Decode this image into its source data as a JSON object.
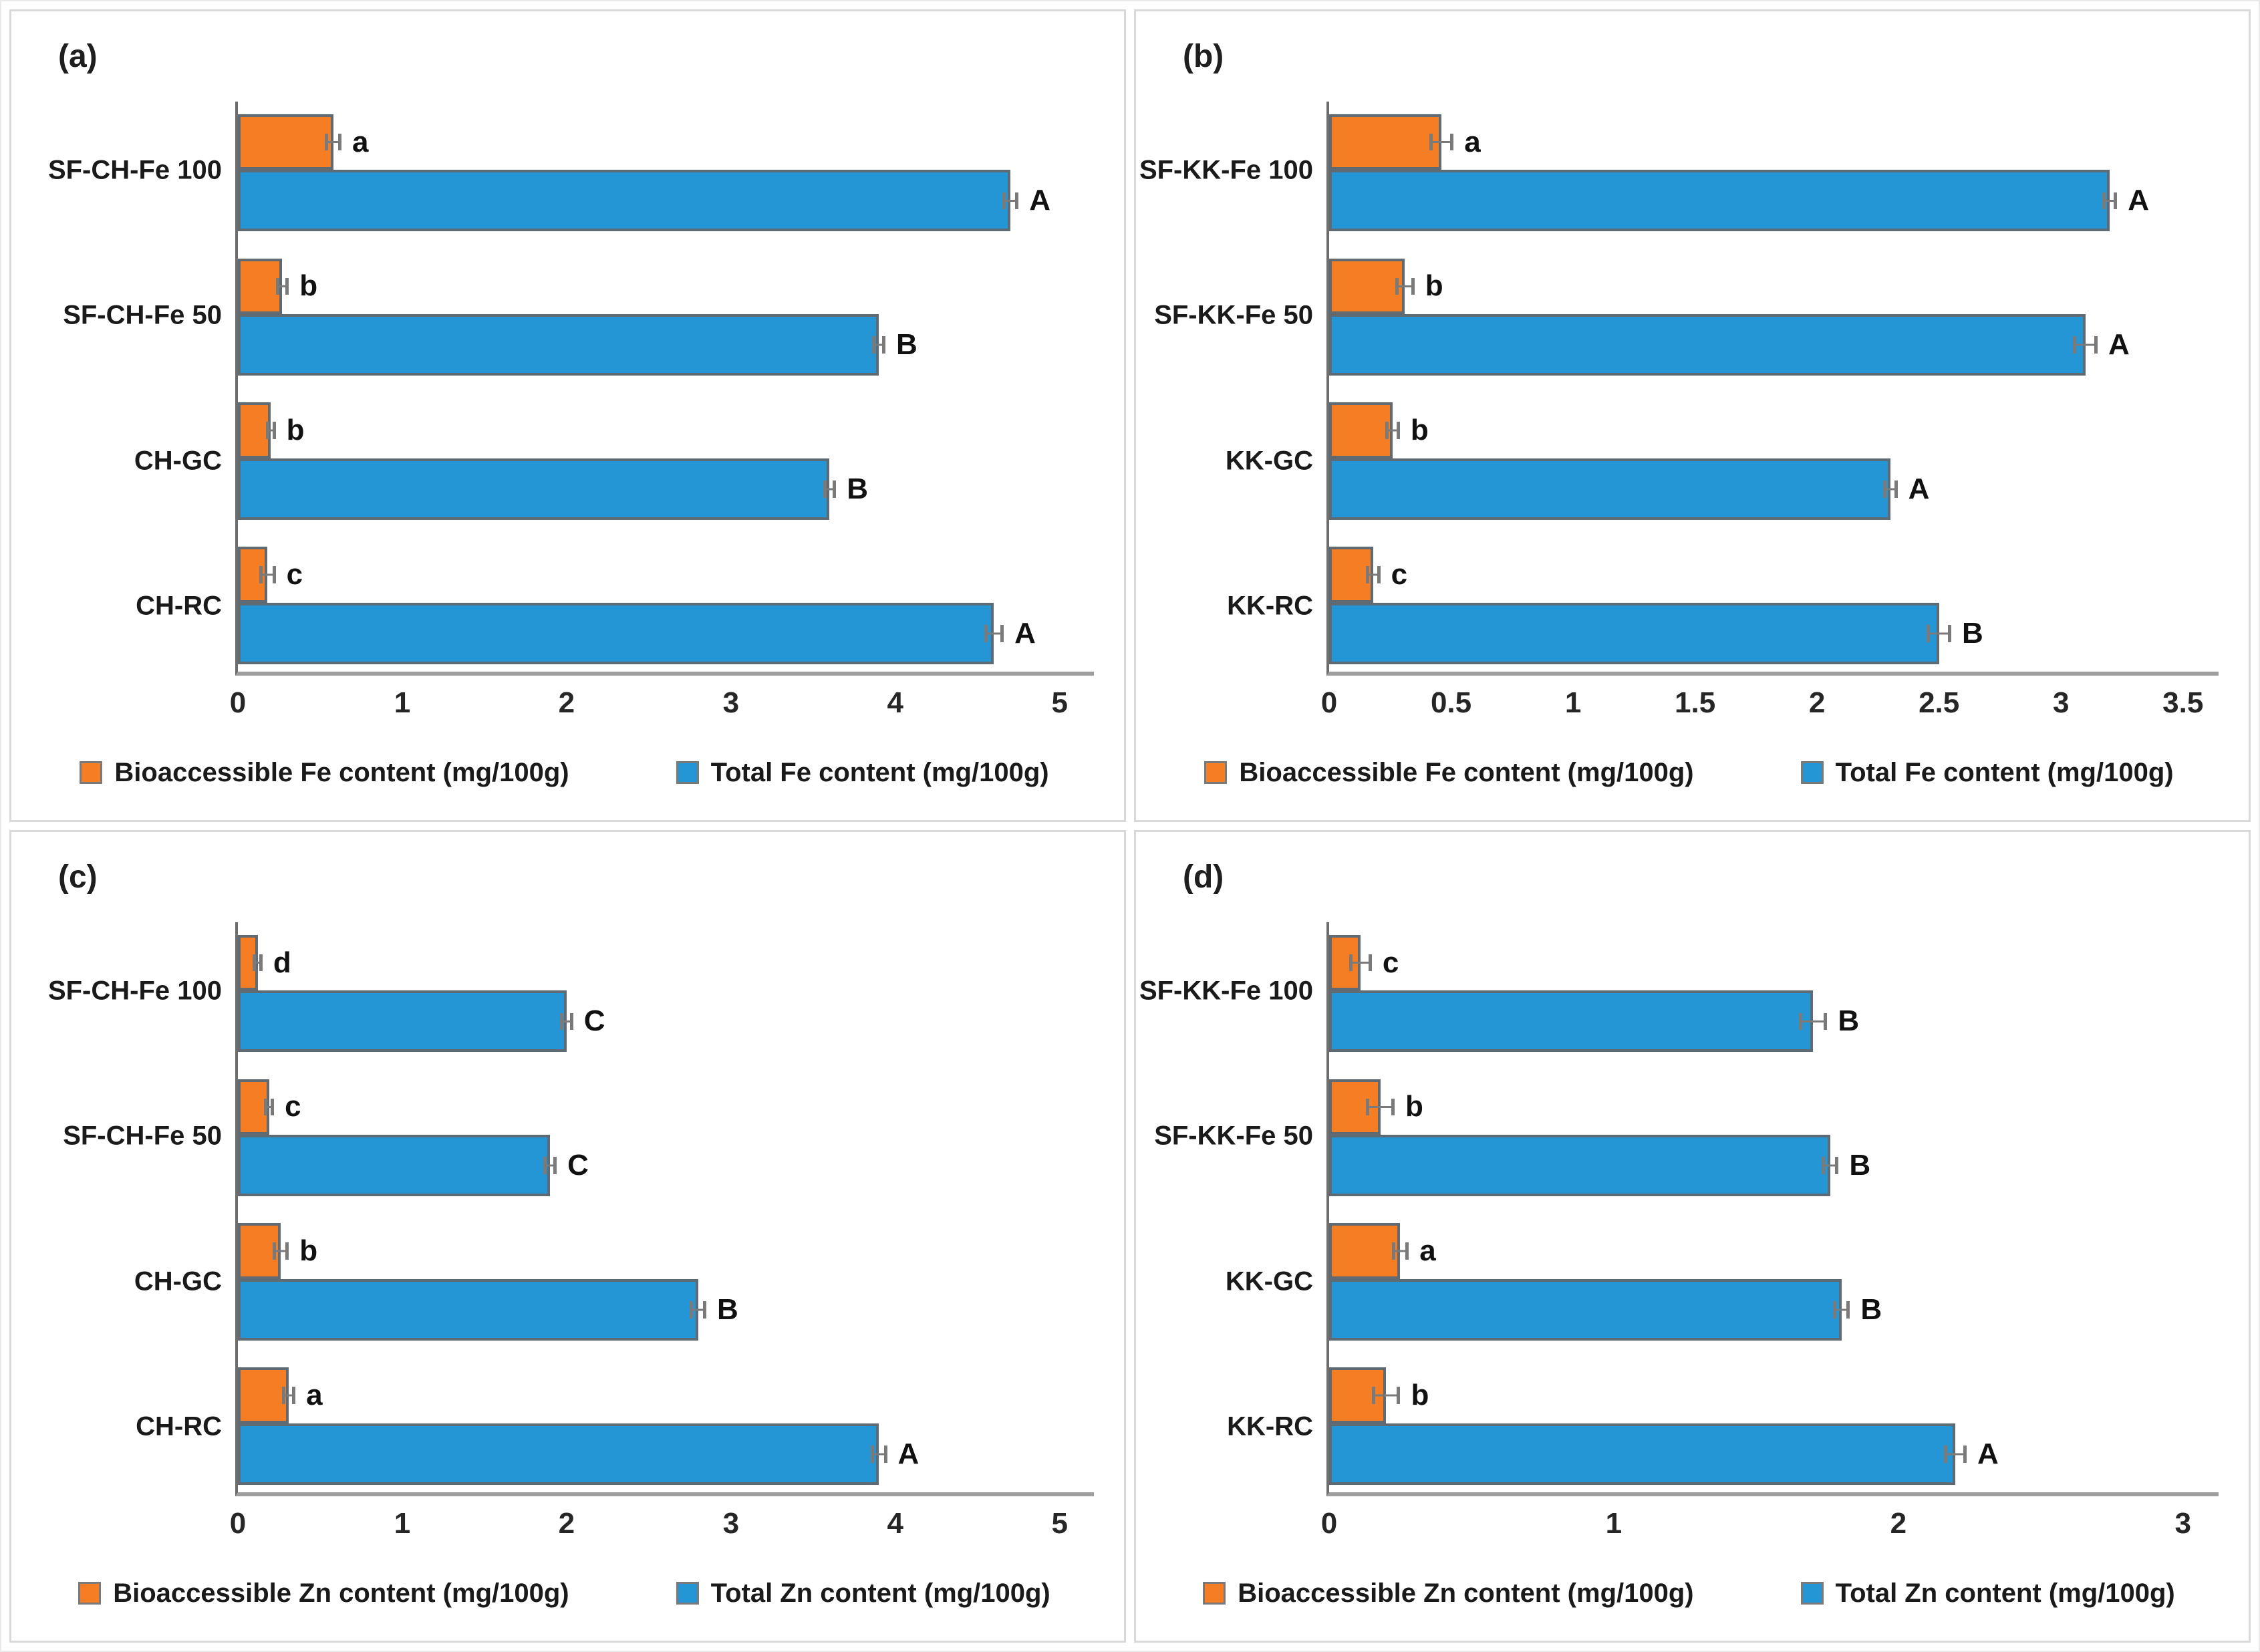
{
  "colors": {
    "bioaccessible": "#F57E25",
    "total": "#2596D5",
    "bar_border": "#5F6A72",
    "error_bar": "#7A7A7A",
    "x_axis": "#9E9E9E",
    "y_axis": "#6E6E6E",
    "panel_border": "#D9D9D9",
    "text": "#1F1F1F"
  },
  "chart_data": [
    {
      "type": "bar",
      "orientation": "horizontal",
      "panel_tag": "(a)",
      "title": "",
      "xlabel": "",
      "ylabel": "",
      "grid": false,
      "legend_position": "bottom",
      "categories": [
        "SF-CH-Fe 100",
        "SF-CH-Fe 50",
        "CH-GC",
        "CH-RC"
      ],
      "xlim": [
        0,
        5
      ],
      "xticks": [
        "0",
        "1",
        "2",
        "3",
        "4",
        "5"
      ],
      "series": [
        {
          "name": "Bioaccessible Fe content (mg/100g)",
          "role": "bioaccessible",
          "values": [
            0.58,
            0.27,
            0.2,
            0.18
          ],
          "errors": [
            0.05,
            0.04,
            0.03,
            0.05
          ],
          "letters": [
            "a",
            "b",
            "b",
            "c"
          ]
        },
        {
          "name": "Total Fe content (mg/100g)",
          "role": "total",
          "values": [
            4.7,
            3.9,
            3.6,
            4.6
          ],
          "errors": [
            0.05,
            0.04,
            0.04,
            0.06
          ],
          "letters": [
            "A",
            "B",
            "B",
            "A"
          ]
        }
      ]
    },
    {
      "type": "bar",
      "orientation": "horizontal",
      "panel_tag": "(b)",
      "title": "",
      "xlabel": "",
      "ylabel": "",
      "grid": false,
      "legend_position": "bottom",
      "categories": [
        "SF-KK-Fe 100",
        "SF-KK-Fe 50",
        "KK-GC",
        "KK-RC"
      ],
      "xlim": [
        0,
        3.5
      ],
      "xticks": [
        "0",
        "0.5",
        "1",
        "1.5",
        "2",
        "2.5",
        "3",
        "3.5"
      ],
      "series": [
        {
          "name": "Bioaccessible Fe content (mg/100g)",
          "role": "bioaccessible",
          "values": [
            0.46,
            0.31,
            0.26,
            0.18
          ],
          "errors": [
            0.05,
            0.04,
            0.03,
            0.03
          ],
          "letters": [
            "a",
            "b",
            "b",
            "c"
          ]
        },
        {
          "name": "Total Fe content (mg/100g)",
          "role": "total",
          "values": [
            3.2,
            3.1,
            2.3,
            2.5
          ],
          "errors": [
            0.03,
            0.05,
            0.03,
            0.05
          ],
          "letters": [
            "A",
            "A",
            "A",
            "B"
          ]
        }
      ]
    },
    {
      "type": "bar",
      "orientation": "horizontal",
      "panel_tag": "(c)",
      "title": "",
      "xlabel": "",
      "ylabel": "",
      "grid": false,
      "legend_position": "bottom",
      "categories": [
        "SF-CH-Fe 100",
        "SF-CH-Fe 50",
        "CH-GC",
        "CH-RC"
      ],
      "xlim": [
        0,
        5
      ],
      "xticks": [
        "0",
        "1",
        "2",
        "3",
        "4",
        "5"
      ],
      "series": [
        {
          "name": "Bioaccessible Zn content (mg/100g)",
          "role": "bioaccessible",
          "values": [
            0.12,
            0.19,
            0.26,
            0.31
          ],
          "errors": [
            0.03,
            0.03,
            0.05,
            0.04
          ],
          "letters": [
            "d",
            "c",
            "b",
            "a"
          ]
        },
        {
          "name": "Total Zn content (mg/100g)",
          "role": "total",
          "values": [
            2.0,
            1.9,
            2.8,
            3.9
          ],
          "errors": [
            0.04,
            0.04,
            0.05,
            0.05
          ],
          "letters": [
            "C",
            "C",
            "B",
            "A"
          ]
        }
      ]
    },
    {
      "type": "bar",
      "orientation": "horizontal",
      "panel_tag": "(d)",
      "title": "",
      "xlabel": "",
      "ylabel": "",
      "grid": false,
      "legend_position": "bottom",
      "categories": [
        "SF-KK-Fe 100",
        "SF-KK-Fe 50",
        "KK-GC",
        "KK-RC"
      ],
      "xlim": [
        0,
        3
      ],
      "xticks": [
        "0",
        "1",
        "2",
        "3"
      ],
      "series": [
        {
          "name": "Bioaccessible Zn content (mg/100g)",
          "role": "bioaccessible",
          "values": [
            0.11,
            0.18,
            0.25,
            0.2
          ],
          "errors": [
            0.04,
            0.05,
            0.03,
            0.05
          ],
          "letters": [
            "c",
            "b",
            "a",
            "b"
          ]
        },
        {
          "name": "Total Zn content (mg/100g)",
          "role": "total",
          "values": [
            1.7,
            1.76,
            1.8,
            2.2
          ],
          "errors": [
            0.05,
            0.03,
            0.03,
            0.04
          ],
          "letters": [
            "B",
            "B",
            "B",
            "A"
          ]
        }
      ]
    }
  ]
}
